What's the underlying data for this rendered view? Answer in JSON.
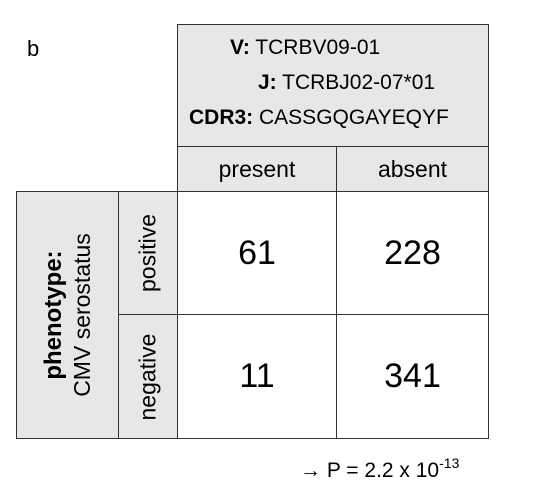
{
  "panel_label": "b",
  "header": {
    "v_key": "V:",
    "v_value": " TCRBV09-01",
    "j_key": "J:",
    "j_value": " TCRBJ02-07*01",
    "cdr3_key": "CDR3:",
    "cdr3_value": " CASSGQGAYEQYF"
  },
  "columns": {
    "present": "present",
    "absent": "absent"
  },
  "rows": {
    "group_title": "phenotype:",
    "group_subtitle": "CMV serostatus",
    "positive": "positive",
    "negative": "negative"
  },
  "table": {
    "positive": {
      "present": "61",
      "absent": "228"
    },
    "negative": {
      "present": "11",
      "absent": "341"
    }
  },
  "pvalue": {
    "arrow": "→",
    "prefix": " P = 2.2 x 10",
    "exponent": "-13"
  },
  "colors": {
    "header_fill": "#e7e7e7",
    "border": "#333333"
  }
}
